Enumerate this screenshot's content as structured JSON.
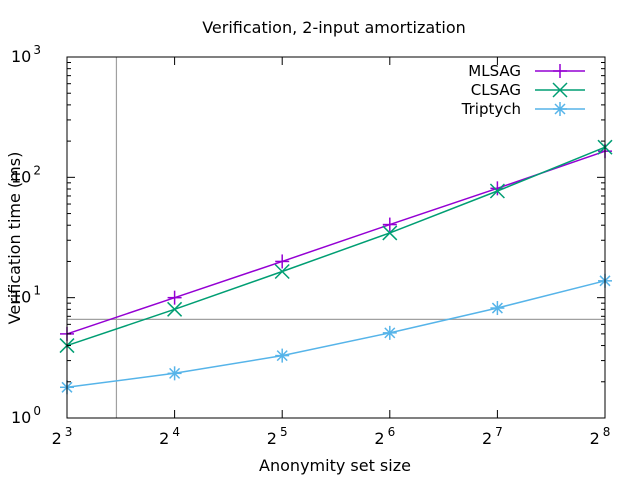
{
  "chart_data": {
    "type": "line",
    "title": "Verification, 2-input amortization",
    "xlabel": "Anonymity set size",
    "ylabel": "Verification time (ms)",
    "x_scale": "log2",
    "y_scale": "log10",
    "x_ticks": [
      {
        "base": "2",
        "exp": "3",
        "value": 8
      },
      {
        "base": "2",
        "exp": "4",
        "value": 16
      },
      {
        "base": "2",
        "exp": "5",
        "value": 32
      },
      {
        "base": "2",
        "exp": "6",
        "value": 64
      },
      {
        "base": "2",
        "exp": "7",
        "value": 128
      },
      {
        "base": "2",
        "exp": "8",
        "value": 256
      }
    ],
    "y_ticks": [
      {
        "base": "10",
        "exp": "0",
        "value": 1
      },
      {
        "base": "10",
        "exp": "1",
        "value": 10
      },
      {
        "base": "10",
        "exp": "2",
        "value": 100
      },
      {
        "base": "10",
        "exp": "3",
        "value": 1000
      }
    ],
    "xlim": [
      8,
      256
    ],
    "ylim": [
      1,
      1000
    ],
    "x": [
      8,
      16,
      32,
      64,
      128,
      256
    ],
    "series": [
      {
        "name": "MLSAG",
        "color": "#9400d3",
        "marker": "plus",
        "values": [
          5.0,
          10.0,
          20.0,
          40.5,
          81.0,
          165.0
        ]
      },
      {
        "name": "CLSAG",
        "color": "#009e73",
        "marker": "cross",
        "values": [
          4.0,
          8.0,
          16.5,
          34.5,
          77.0,
          178.0
        ]
      },
      {
        "name": "Triptych",
        "color": "#56b4e9",
        "marker": "star",
        "values": [
          1.8,
          2.35,
          3.3,
          5.1,
          8.2,
          13.8
        ]
      }
    ],
    "reference_lines": [
      {
        "axis": "x",
        "value": 11.0,
        "color": "#a0a0a0"
      },
      {
        "axis": "y",
        "value": 6.6,
        "color": "#a0a0a0"
      }
    ],
    "legend_position": "top-right",
    "grid": false
  }
}
